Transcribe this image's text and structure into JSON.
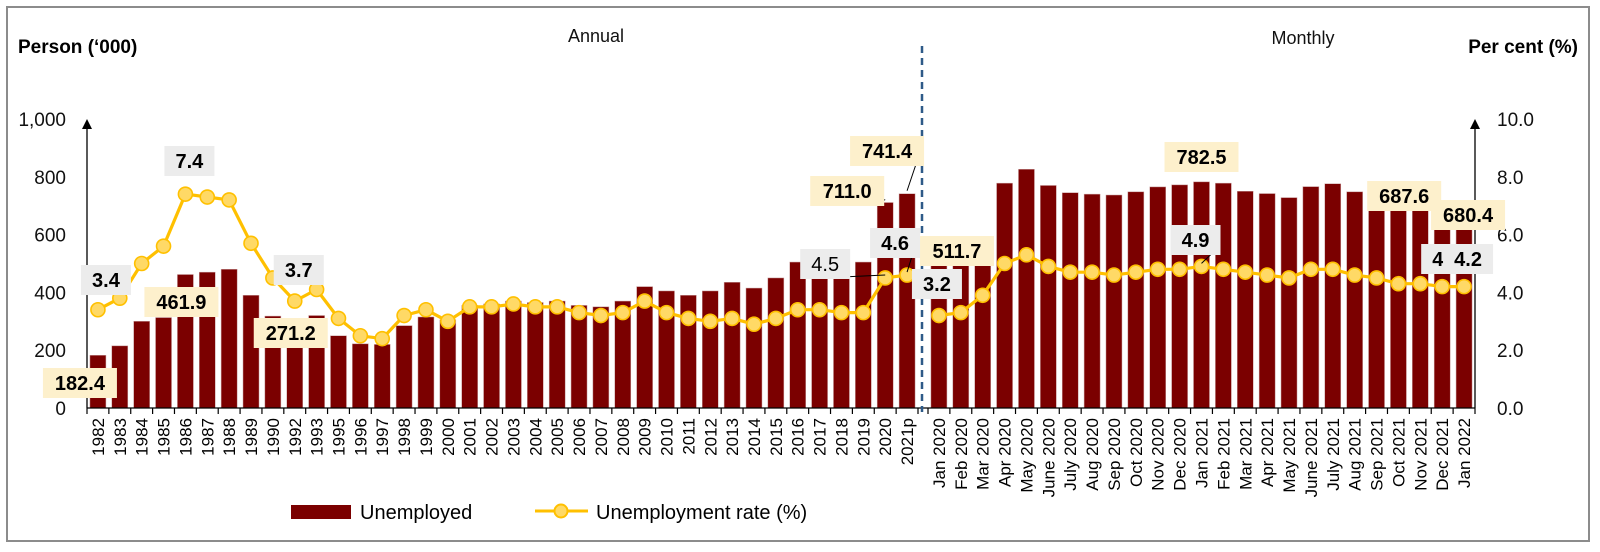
{
  "chart_data": {
    "type": "bar+line",
    "sections": {
      "annual_title": "Annual",
      "monthly_title": "Monthly"
    },
    "left_axis": {
      "title": "Person (‘000)",
      "range": [
        0,
        1000
      ],
      "ticks": [
        "0",
        "200",
        "400",
        "600",
        "800",
        "1,000"
      ],
      "tick_values": [
        0,
        200,
        400,
        600,
        800,
        1000
      ]
    },
    "right_axis": {
      "title": "Per cent (%)",
      "range": [
        0,
        10
      ],
      "ticks": [
        "0.0",
        "2.0",
        "4.0",
        "6.0",
        "8.0",
        "10.0"
      ],
      "tick_values": [
        0,
        2,
        4,
        6,
        8,
        10
      ]
    },
    "categories": [
      "1982",
      "1983",
      "1984",
      "1985",
      "1986",
      "1987",
      "1988",
      "1989",
      "1990",
      "1992",
      "1993",
      "1995",
      "1996",
      "1997",
      "1998",
      "1999",
      "2000",
      "2001",
      "2002",
      "2003",
      "2004",
      "2005",
      "2006",
      "2007",
      "2008",
      "2009",
      "2010",
      "2011",
      "2012",
      "2013",
      "2014",
      "2015",
      "2016",
      "2017",
      "2018",
      "2019",
      "2020",
      "2021p",
      "Jan 2020",
      "Feb 2020",
      "Mar 2020",
      "Apr 2020",
      "May 2020",
      "June 2020",
      "July 2020",
      "Aug 2020",
      "Sep 2020",
      "Oct 2020",
      "Nov 2020",
      "Dec 2020",
      "Jan 2021",
      "Feb 2021",
      "Mar 2021",
      "Apr 2021",
      "May 2021",
      "June 2021",
      "July 2021",
      "Aug 2021",
      "Sep 2021",
      "Oct 2021",
      "Nov 2021",
      "Dec 2021",
      "Jan 2022"
    ],
    "annual_count": 38,
    "series": [
      {
        "name": "Unemployed",
        "type": "bar",
        "axis": "left",
        "color": "#7b0000",
        "values": [
          182.4,
          215,
          300,
          313,
          461.9,
          470,
          480,
          390,
          318,
          271.2,
          320,
          250,
          222,
          220,
          285,
          315,
          305,
          355,
          360,
          370,
          365,
          370,
          355,
          350,
          370,
          420,
          405,
          390,
          405,
          435,
          415,
          450,
          505,
          460,
          500,
          505,
          711.0,
          741.4,
          511.7,
          525,
          580,
          778,
          826,
          770,
          745,
          740,
          737,
          748,
          765,
          772,
          782.5,
          778,
          750,
          742,
          728,
          766,
          776,
          748,
          732,
          705,
          695,
          687.6,
          680.4
        ]
      },
      {
        "name": "Unemployment rate (%)",
        "type": "line",
        "axis": "right",
        "color": "#ffc000",
        "marker_fill": "#ffd966",
        "values": [
          3.4,
          3.8,
          5.0,
          5.6,
          7.4,
          7.3,
          7.2,
          5.7,
          4.5,
          3.7,
          4.1,
          3.1,
          2.5,
          2.4,
          3.2,
          3.4,
          3.0,
          3.5,
          3.5,
          3.6,
          3.5,
          3.5,
          3.3,
          3.2,
          3.3,
          3.7,
          3.3,
          3.1,
          3.0,
          3.1,
          2.9,
          3.1,
          3.4,
          3.4,
          3.3,
          3.3,
          4.5,
          4.6,
          3.2,
          3.3,
          3.9,
          5.0,
          5.3,
          4.9,
          4.7,
          4.7,
          4.6,
          4.7,
          4.8,
          4.8,
          4.9,
          4.8,
          4.7,
          4.6,
          4.5,
          4.8,
          4.8,
          4.6,
          4.5,
          4.3,
          4.3,
          4.2,
          4.2
        ]
      }
    ],
    "annotations": [
      {
        "text": "182.4",
        "series": "Unemployed",
        "category": "1982",
        "style": "bar"
      },
      {
        "text": "461.9",
        "series": "Unemployed",
        "category": "1986",
        "style": "bar"
      },
      {
        "text": "271.2",
        "series": "Unemployed",
        "category": "1992",
        "style": "bar"
      },
      {
        "text": "711.0",
        "series": "Unemployed",
        "category": "2020",
        "style": "bar"
      },
      {
        "text": "741.4",
        "series": "Unemployed",
        "category": "2021p",
        "style": "bar"
      },
      {
        "text": "511.7",
        "series": "Unemployed",
        "category": "Jan 2020",
        "style": "bar"
      },
      {
        "text": "782.5",
        "series": "Unemployed",
        "category": "Jan 2021",
        "style": "bar"
      },
      {
        "text": "687.6",
        "series": "Unemployed",
        "category": "Dec 2021",
        "style": "bar"
      },
      {
        "text": "680.4",
        "series": "Unemployed",
        "category": "Jan 2022",
        "style": "bar"
      },
      {
        "text": "3.4",
        "series": "Unemployment rate (%)",
        "category": "1982",
        "style": "rate"
      },
      {
        "text": "7.4",
        "series": "Unemployment rate (%)",
        "category": "1986",
        "style": "rate"
      },
      {
        "text": "3.7",
        "series": "Unemployment rate (%)",
        "category": "1992",
        "style": "rate"
      },
      {
        "text": "4.5",
        "series": "Unemployment rate (%)",
        "category": "2020",
        "style": "rate-light"
      },
      {
        "text": "4.6",
        "series": "Unemployment rate (%)",
        "category": "2021p",
        "style": "rate"
      },
      {
        "text": "3.2",
        "series": "Unemployment rate (%)",
        "category": "Jan 2020",
        "style": "rate"
      },
      {
        "text": "4.9",
        "series": "Unemployment rate (%)",
        "category": "Jan 2021",
        "style": "rate"
      },
      {
        "text": "4.2",
        "series": "Unemployment rate (%)",
        "category": "Dec 2021",
        "style": "rate"
      },
      {
        "text": "4.2",
        "series": "Unemployment rate (%)",
        "category": "Jan 2022",
        "style": "rate"
      }
    ],
    "legend": {
      "position": "bottom",
      "items": [
        {
          "label": "Unemployed",
          "marker": "bar"
        },
        {
          "label": "Unemployment rate (%)",
          "marker": "line-dot"
        }
      ]
    },
    "grid": false,
    "colors": {
      "bar": "#7b0000",
      "line": "#ffc000",
      "marker_fill": "#ffd966",
      "bar_label_bg": "#fdf0cc",
      "rate_label_bg": "#ececec",
      "divider": "#2e5a88"
    }
  }
}
